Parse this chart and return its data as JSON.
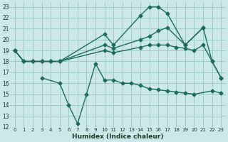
{
  "background_color": "#cce8e8",
  "grid_color": "#99cccc",
  "line_color": "#1a6b5a",
  "xlabel": "Humidex (Indice chaleur)",
  "xlim": [
    -0.5,
    23.5
  ],
  "ylim": [
    12,
    23.4
  ],
  "yticks": [
    12,
    13,
    14,
    15,
    16,
    17,
    18,
    19,
    20,
    21,
    22,
    23
  ],
  "xticks": [
    0,
    1,
    2,
    3,
    4,
    5,
    6,
    7,
    8,
    9,
    10,
    11,
    12,
    13,
    14,
    15,
    16,
    17,
    18,
    19,
    20,
    21,
    22,
    23
  ],
  "series1_x": [
    0,
    1,
    2,
    3,
    4,
    5,
    10,
    11,
    14,
    15,
    16,
    17,
    19,
    21
  ],
  "series1_y": [
    19.0,
    18.0,
    18.0,
    18.0,
    18.0,
    18.0,
    20.5,
    19.5,
    22.2,
    23.0,
    23.0,
    22.4,
    19.5,
    21.1
  ],
  "series2_x": [
    0,
    1,
    2,
    3,
    4,
    5,
    10,
    11,
    14,
    15,
    16,
    17,
    19,
    21,
    22,
    23
  ],
  "series2_y": [
    19.0,
    18.0,
    18.0,
    18.0,
    18.0,
    18.0,
    19.5,
    19.2,
    20.0,
    20.3,
    20.8,
    21.1,
    19.5,
    21.1,
    18.0,
    16.5
  ],
  "series3_x": [
    0,
    1,
    2,
    3,
    4,
    5,
    10,
    11,
    14,
    15,
    16,
    17,
    18,
    19,
    20,
    21,
    22,
    23
  ],
  "series3_y": [
    19.0,
    18.0,
    18.0,
    18.0,
    18.0,
    18.0,
    19.0,
    18.8,
    19.3,
    19.5,
    19.5,
    19.5,
    19.3,
    19.2,
    19.0,
    19.5,
    18.0,
    16.5
  ],
  "series4_x": [
    3,
    5,
    6,
    7,
    8,
    9,
    10,
    11,
    12,
    13,
    14,
    15,
    16,
    17,
    18,
    19,
    20,
    22,
    23
  ],
  "series4_y": [
    16.5,
    16.0,
    14.0,
    12.3,
    15.0,
    17.8,
    16.3,
    16.3,
    16.0,
    16.0,
    15.8,
    15.5,
    15.4,
    15.3,
    15.2,
    15.1,
    15.0,
    15.3,
    15.1
  ]
}
